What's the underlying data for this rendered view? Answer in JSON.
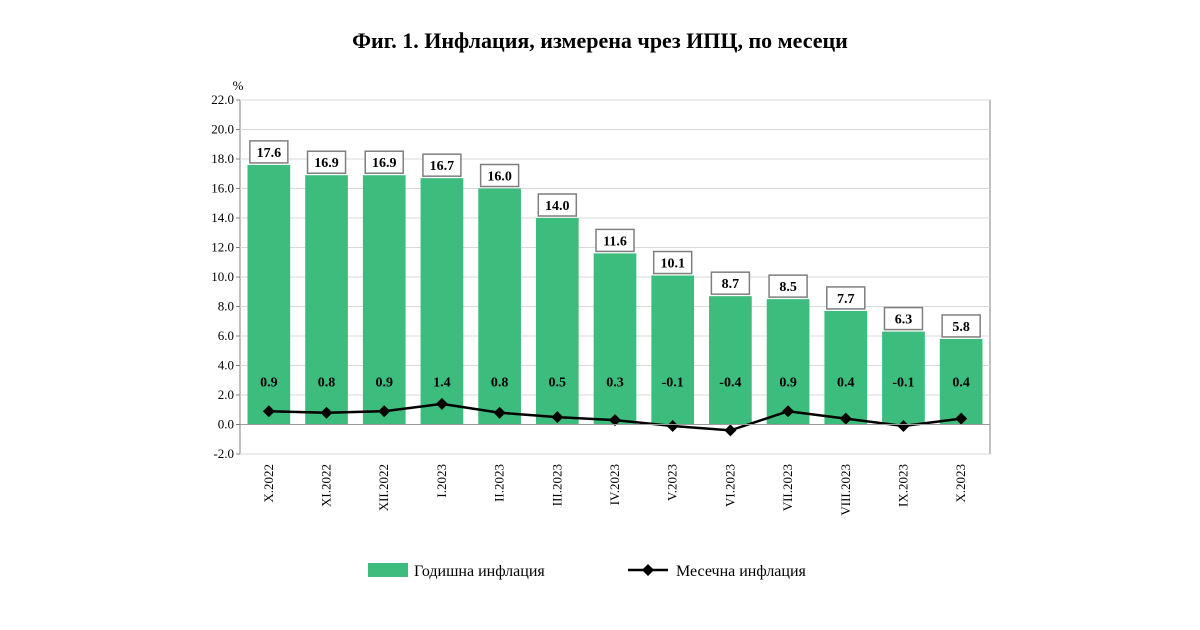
{
  "title": "Фиг. 1. Инфлация, измерена чрез ИПЦ, по месеци",
  "colors": {
    "bar": "#3dbd7d",
    "line": "#000000",
    "grid": "#d9d9d9",
    "frame": "#808080"
  },
  "chart_data": {
    "type": "bar",
    "title": "Фиг. 1. Инфлация, измерена чрез ИПЦ, по месеци",
    "ylabel": "%",
    "ylim": [
      -2.0,
      22.0
    ],
    "ytick_step": 2.0,
    "grid": true,
    "legend_position": "bottom",
    "categories": [
      "X.2022",
      "XI.2022",
      "XII.2022",
      "I.2023",
      "II.2023",
      "III.2023",
      "IV.2023",
      "V.2023",
      "VI.2023",
      "VII.2023",
      "VIII.2023",
      "IX.2023",
      "X.2023"
    ],
    "series": [
      {
        "name": "Годишна инфлация",
        "type": "bar",
        "values": [
          17.6,
          16.9,
          16.9,
          16.7,
          16.0,
          14.0,
          11.6,
          10.1,
          8.7,
          8.5,
          7.7,
          6.3,
          5.8
        ]
      },
      {
        "name": "Месечна инфлация",
        "type": "line",
        "values": [
          0.9,
          0.8,
          0.9,
          1.4,
          0.8,
          0.5,
          0.3,
          -0.1,
          -0.4,
          0.9,
          0.4,
          -0.1,
          0.4
        ]
      }
    ]
  }
}
